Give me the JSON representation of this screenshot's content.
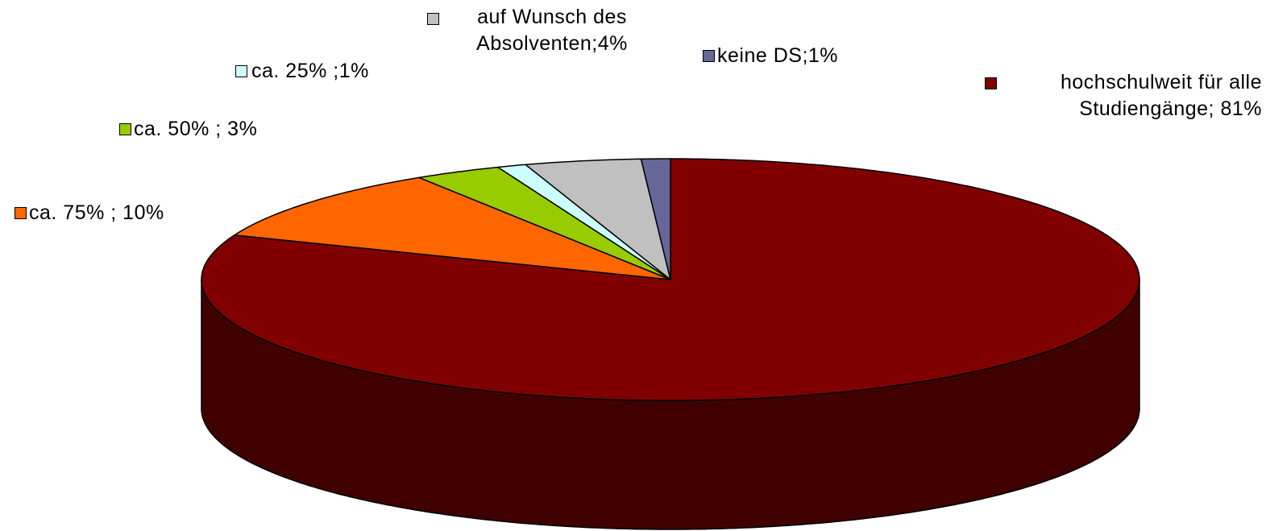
{
  "chart_data": {
    "type": "pie",
    "three_d": true,
    "values": [
      81,
      10,
      3,
      1,
      4,
      1
    ],
    "value_labels": [
      "hochschulweit für alle\nStudiengänge; 81%",
      "ca. 75% ; 10%",
      "ca. 50% ; 3%",
      "ca. 25% ;1%",
      "auf Wunsch des\nAbsolventen;4%",
      "keine DS;1%"
    ],
    "colors": [
      "#800000",
      "#ff6600",
      "#99cc00",
      "#ccffff",
      "#c0c0c0",
      "#666699"
    ],
    "side_colors": [
      "#400000",
      "#803300",
      "#4d6600",
      "#668080",
      "#606060",
      "#333366"
    ]
  }
}
